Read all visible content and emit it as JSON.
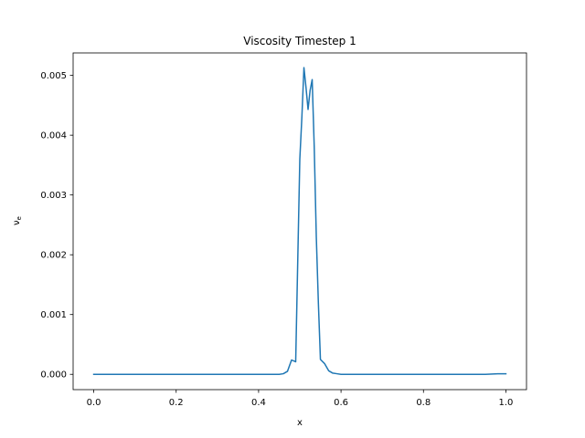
{
  "chart_data": {
    "type": "line",
    "title": "Viscosity Timestep 1",
    "xlabel": "x",
    "ylabel_base": "ν",
    "ylabel_sub": "e",
    "xlim": [
      -0.05,
      1.05
    ],
    "ylim": [
      -0.000256,
      0.005376
    ],
    "xticks": [
      0.0,
      0.2,
      0.4,
      0.6,
      0.8,
      1.0
    ],
    "xtick_labels": [
      "0.0",
      "0.2",
      "0.4",
      "0.6",
      "0.8",
      "1.0"
    ],
    "yticks": [
      0.0,
      0.001,
      0.002,
      0.003,
      0.004,
      0.005
    ],
    "ytick_labels": [
      "0.000",
      "0.001",
      "0.002",
      "0.003",
      "0.004",
      "0.005"
    ],
    "grid": false,
    "series": [
      {
        "color": "#1f77b4",
        "x": [
          0.0,
          0.05,
          0.1,
          0.15,
          0.2,
          0.25,
          0.3,
          0.35,
          0.4,
          0.45,
          0.46,
          0.47,
          0.48,
          0.49,
          0.5,
          0.505,
          0.51,
          0.515,
          0.52,
          0.525,
          0.53,
          0.535,
          0.54,
          0.545,
          0.55,
          0.56,
          0.57,
          0.58,
          0.59,
          0.6,
          0.65,
          0.7,
          0.75,
          0.8,
          0.85,
          0.9,
          0.95,
          0.98,
          1.0
        ],
        "y": [
          0.0,
          0.0,
          0.0,
          0.0,
          0.0,
          0.0,
          0.0,
          0.0,
          0.0,
          0.0,
          1e-05,
          5e-05,
          0.00024,
          0.00021,
          0.0036,
          0.0043,
          0.00513,
          0.0048,
          0.00443,
          0.00475,
          0.00493,
          0.0038,
          0.0023,
          0.0012,
          0.00025,
          0.00018,
          6e-05,
          2e-05,
          1e-05,
          0.0,
          0.0,
          0.0,
          0.0,
          0.0,
          0.0,
          0.0,
          0.0,
          1e-05,
          1e-05
        ]
      }
    ]
  }
}
